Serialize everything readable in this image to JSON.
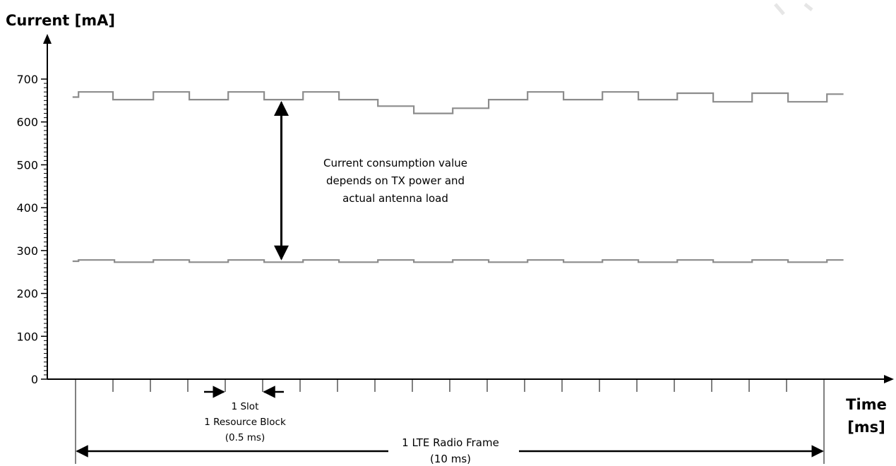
{
  "chart_data": {
    "type": "line",
    "title": "",
    "ylabel": "Current [mA]",
    "xlabel_line1": "Time",
    "xlabel_line2": "[ms]",
    "ylim": [
      0,
      700
    ],
    "xlim": [
      0,
      10
    ],
    "y_ticks": [
      0,
      100,
      200,
      300,
      400,
      500,
      600,
      700
    ],
    "y_tick_labels": [
      "0",
      "100",
      "200",
      "300",
      "400",
      "500",
      "600",
      "700"
    ],
    "x_slot_ticks": [
      0,
      0.5,
      1,
      1.5,
      2,
      2.5,
      3,
      3.5,
      4,
      4.5,
      5,
      5.5,
      6,
      6.5,
      7,
      7.5,
      8,
      8.5,
      9,
      9.5,
      10
    ],
    "grid": false,
    "legend": "none",
    "series": [
      {
        "line_color": "#8c8c8c",
        "segments": [
          {
            "x0": -0.04,
            "x1": 0.04,
            "y": 658
          },
          {
            "x0": 0.04,
            "x1": 0.5,
            "y": 670
          },
          {
            "x0": 0.5,
            "x1": 1.04,
            "y": 652
          },
          {
            "x0": 1.04,
            "x1": 1.52,
            "y": 670
          },
          {
            "x0": 1.52,
            "x1": 2.04,
            "y": 652
          },
          {
            "x0": 2.04,
            "x1": 2.52,
            "y": 670
          },
          {
            "x0": 2.52,
            "x1": 3.04,
            "y": 652
          },
          {
            "x0": 3.04,
            "x1": 3.52,
            "y": 670
          },
          {
            "x0": 3.52,
            "x1": 4.04,
            "y": 652
          },
          {
            "x0": 4.04,
            "x1": 4.52,
            "y": 637
          },
          {
            "x0": 4.52,
            "x1": 5.04,
            "y": 620
          },
          {
            "x0": 5.04,
            "x1": 5.52,
            "y": 632
          },
          {
            "x0": 5.52,
            "x1": 6.04,
            "y": 652
          },
          {
            "x0": 6.04,
            "x1": 6.52,
            "y": 670
          },
          {
            "x0": 6.52,
            "x1": 7.04,
            "y": 652
          },
          {
            "x0": 7.04,
            "x1": 7.52,
            "y": 670
          },
          {
            "x0": 7.52,
            "x1": 8.04,
            "y": 652
          },
          {
            "x0": 8.04,
            "x1": 8.52,
            "y": 667
          },
          {
            "x0": 8.52,
            "x1": 9.04,
            "y": 647
          },
          {
            "x0": 9.04,
            "x1": 9.52,
            "y": 667
          },
          {
            "x0": 9.52,
            "x1": 10.04,
            "y": 647
          },
          {
            "x0": 10.04,
            "x1": 10.26,
            "y": 665
          }
        ]
      },
      {
        "line_color": "#8c8c8c",
        "segments": [
          {
            "x0": -0.04,
            "x1": 0.04,
            "y": 275
          },
          {
            "x0": 0.04,
            "x1": 0.52,
            "y": 278
          },
          {
            "x0": 0.52,
            "x1": 1.04,
            "y": 273
          },
          {
            "x0": 1.04,
            "x1": 1.52,
            "y": 278
          },
          {
            "x0": 1.52,
            "x1": 2.04,
            "y": 273
          },
          {
            "x0": 2.04,
            "x1": 2.52,
            "y": 278
          },
          {
            "x0": 2.52,
            "x1": 3.04,
            "y": 273
          },
          {
            "x0": 3.04,
            "x1": 3.52,
            "y": 278
          },
          {
            "x0": 3.52,
            "x1": 4.04,
            "y": 273
          },
          {
            "x0": 4.04,
            "x1": 4.52,
            "y": 278
          },
          {
            "x0": 4.52,
            "x1": 5.04,
            "y": 273
          },
          {
            "x0": 5.04,
            "x1": 5.52,
            "y": 278
          },
          {
            "x0": 5.52,
            "x1": 6.04,
            "y": 273
          },
          {
            "x0": 6.04,
            "x1": 6.52,
            "y": 278
          },
          {
            "x0": 6.52,
            "x1": 7.04,
            "y": 273
          },
          {
            "x0": 7.04,
            "x1": 7.52,
            "y": 278
          },
          {
            "x0": 7.52,
            "x1": 8.04,
            "y": 273
          },
          {
            "x0": 8.04,
            "x1": 8.52,
            "y": 278
          },
          {
            "x0": 8.52,
            "x1": 9.04,
            "y": 273
          },
          {
            "x0": 9.04,
            "x1": 9.52,
            "y": 278
          },
          {
            "x0": 9.52,
            "x1": 10.04,
            "y": 273
          },
          {
            "x0": 10.04,
            "x1": 10.26,
            "y": 278
          }
        ]
      }
    ],
    "annotations": {
      "range_arrow": {
        "x": 2.75,
        "y_top": 652,
        "y_bottom": 274
      },
      "range_text": [
        "Current consumption value",
        "depends on TX power and",
        "actual antenna load"
      ],
      "slot_arrows": {
        "x_left": 2.0,
        "x_right": 2.5
      },
      "slot_text": [
        "1 Slot",
        "1 Resource Block",
        "(0.5 ms)"
      ],
      "frame_span": {
        "x0": 0,
        "x1": 10
      },
      "frame_text": [
        "1 LTE Radio Frame",
        "(10 ms)"
      ]
    }
  }
}
